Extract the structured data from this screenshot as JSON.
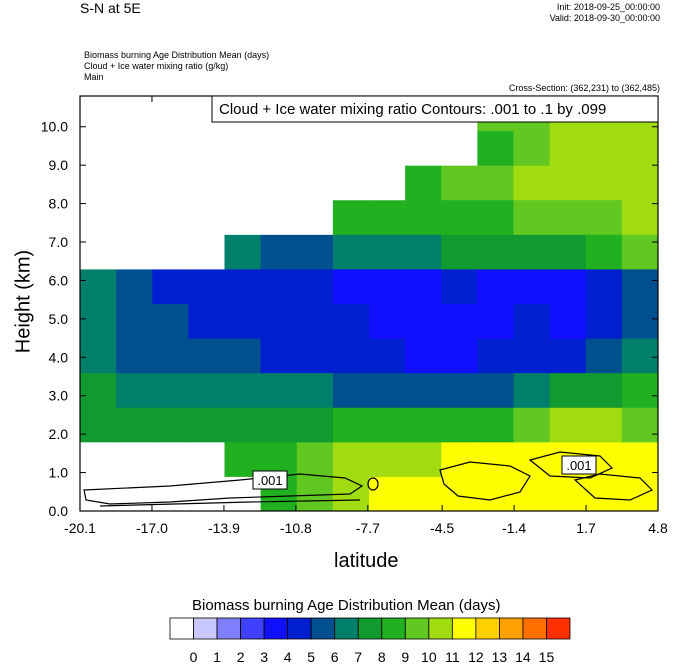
{
  "header": {
    "title": "S-N at 5E",
    "init": "Init: 2018-09-25_00:00:00",
    "valid": "Valid: 2018-09-30_00:00:00",
    "variables": [
      "Biomass burning Age Distribution Mean   (days)",
      "Cloud + Ice water mixing ratio   (g/kg)",
      "Main"
    ],
    "cross_section": "Cross-Section: (362,231) to (362,485)",
    "contour_legend": "Cloud + Ice water mixing ratio Contours: .001 to .1 by .099"
  },
  "contour_labels": [
    ".001",
    ".001"
  ],
  "colorbar": {
    "title": "Biomass burning Age Distribution Mean  (days)",
    "labels": [
      "0",
      "1",
      "2",
      "3",
      "4",
      "5",
      "6",
      "7",
      "8",
      "9",
      "10",
      "11",
      "12",
      "13",
      "14",
      "15"
    ],
    "colors": [
      "#ffffff",
      "#c8c8ff",
      "#8080ff",
      "#4040ff",
      "#1010ff",
      "#0020d0",
      "#005090",
      "#00806a",
      "#109a30",
      "#20b020",
      "#60c820",
      "#a0dc10",
      "#ffff00",
      "#ffd000",
      "#ffa000",
      "#ff7000",
      "#ff3000",
      "#ff0000"
    ]
  },
  "chart_data": {
    "type": "heatmap",
    "title": "S-N at 5E",
    "xlabel": "latitude",
    "ylabel": "Height (km)",
    "x_ticks": [
      "-20.1",
      "-17.0",
      "-13.9",
      "-10.8",
      "-7.7",
      "-4.5",
      "-1.4",
      "1.7",
      "4.8"
    ],
    "y_ticks": [
      "0.0",
      "1.0",
      "2.0",
      "3.0",
      "4.0",
      "5.0",
      "6.0",
      "7.0",
      "8.0",
      "9.0",
      "10.0"
    ],
    "xlim": [
      -20.1,
      4.8
    ],
    "ylim": [
      0.0,
      10.8
    ],
    "grid_ny": 12,
    "grid_nx": 16,
    "grid": [
      [
        0,
        0,
        0,
        0,
        0,
        9,
        10,
        11,
        12,
        12,
        12,
        12,
        12,
        12,
        12,
        12
      ],
      [
        0,
        0,
        0,
        0,
        9,
        9,
        10,
        11,
        11,
        11,
        12,
        12,
        12,
        12,
        12,
        12
      ],
      [
        8,
        8,
        8,
        8,
        8,
        8,
        8,
        9,
        9,
        9,
        9,
        9,
        10,
        11,
        11,
        10
      ],
      [
        8,
        7,
        7,
        7,
        7,
        7,
        7,
        6,
        6,
        6,
        6,
        6,
        7,
        8,
        8,
        9
      ],
      [
        7,
        6,
        6,
        6,
        6,
        5,
        5,
        5,
        5,
        4,
        4,
        5,
        5,
        5,
        6,
        7
      ],
      [
        7,
        6,
        6,
        5,
        5,
        5,
        5,
        5,
        4,
        4,
        4,
        4,
        5,
        4,
        5,
        6
      ],
      [
        7,
        6,
        5,
        5,
        5,
        5,
        5,
        4,
        4,
        4,
        5,
        4,
        4,
        4,
        5,
        6
      ],
      [
        0,
        0,
        0,
        0,
        7,
        6,
        6,
        7,
        7,
        7,
        8,
        8,
        8,
        8,
        9,
        10
      ],
      [
        0,
        0,
        0,
        0,
        0,
        0,
        0,
        9,
        9,
        9,
        9,
        9,
        10,
        10,
        10,
        11
      ],
      [
        0,
        0,
        0,
        0,
        0,
        0,
        0,
        0,
        0,
        9,
        10,
        10,
        11,
        11,
        11,
        11
      ],
      [
        0,
        0,
        0,
        0,
        0,
        0,
        0,
        0,
        0,
        0,
        0,
        9,
        10,
        11,
        11,
        11
      ],
      [
        0,
        0,
        0,
        0,
        0,
        0,
        0,
        0,
        0,
        0,
        0,
        10,
        10,
        11,
        11,
        11
      ]
    ]
  }
}
